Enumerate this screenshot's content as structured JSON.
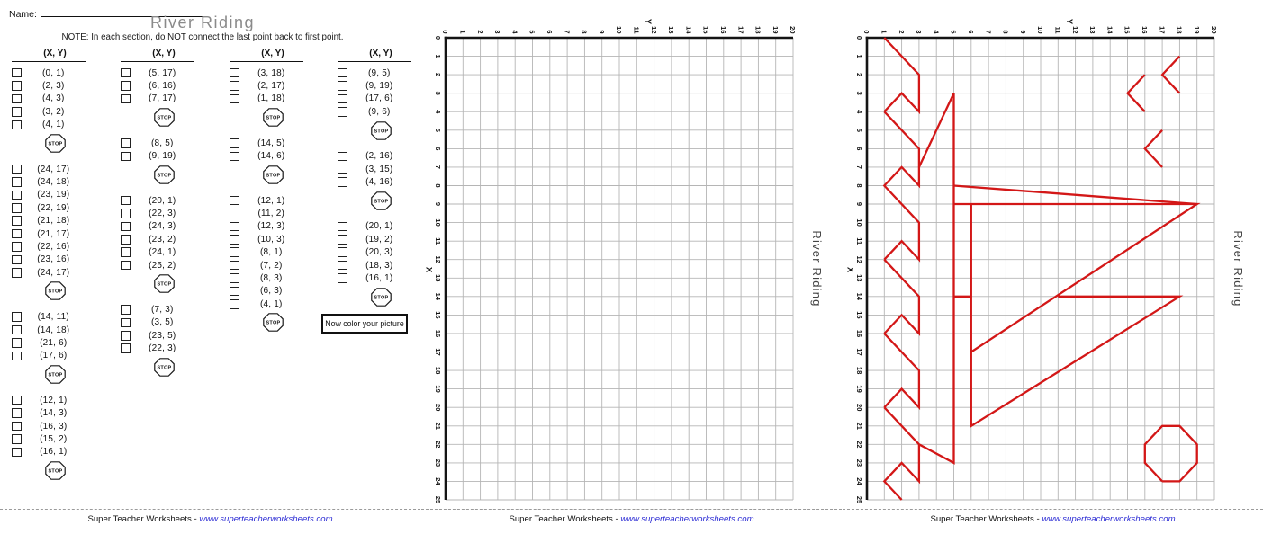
{
  "header": {
    "name_label": "Name:",
    "title": "River Riding",
    "note": "NOTE:  In each section, do NOT connect the last point back to first point."
  },
  "column_header": "(X, Y)",
  "stop_label": "STOP",
  "color_box_label": "Now color your picture",
  "footer": {
    "site": "Super Teacher Worksheets - ",
    "url": "www.superteacherworksheets.com"
  },
  "coordinate_columns": [
    {
      "sections": [
        {
          "points": [
            "(0, 1)",
            "(2, 3)",
            "(4, 3)",
            "(3, 2)",
            "(4, 1)"
          ]
        },
        {
          "points": [
            "(24, 17)",
            "(24, 18)",
            "(23, 19)",
            "(22, 19)",
            "(21, 18)",
            "(21, 17)",
            "(22, 16)",
            "(23, 16)",
            "(24, 17)"
          ]
        },
        {
          "points": [
            "(14, 11)",
            "(14, 18)",
            "(21, 6)",
            "(17, 6)"
          ]
        },
        {
          "points": [
            "(12, 1)",
            "(14, 3)",
            "(16, 3)",
            "(15, 2)",
            "(16, 1)"
          ]
        }
      ]
    },
    {
      "sections": [
        {
          "points": [
            "(5, 17)",
            "(6, 16)",
            "(7, 17)"
          ]
        },
        {
          "points": [
            "(8, 5)",
            "(9, 19)"
          ]
        },
        {
          "points": [
            "(20, 1)",
            "(22, 3)",
            "(24, 3)",
            "(23, 2)",
            "(24, 1)",
            "(25, 2)"
          ]
        },
        {
          "points": [
            "(7, 3)",
            "(3, 5)",
            "(23, 5)",
            "(22, 3)"
          ]
        }
      ]
    },
    {
      "sections": [
        {
          "points": [
            "(3, 18)",
            "(2, 17)",
            "(1, 18)"
          ]
        },
        {
          "points": [
            "(14, 5)",
            "(14, 6)"
          ]
        },
        {
          "points": [
            "(12, 1)",
            "(11, 2)",
            "(12, 3)",
            "(10, 3)",
            "(8, 1)",
            "(7, 2)",
            "(8, 3)",
            "(6, 3)",
            "(4, 1)"
          ]
        }
      ]
    },
    {
      "sections": [
        {
          "points": [
            "(9, 5)",
            "(9, 19)",
            "(17, 6)",
            "(9, 6)"
          ]
        },
        {
          "points": [
            "(2, 16)",
            "(3, 15)",
            "(4, 16)"
          ]
        },
        {
          "points": [
            "(20, 1)",
            "(19, 2)",
            "(20, 3)",
            "(18, 3)",
            "(16, 1)"
          ]
        }
      ]
    }
  ],
  "grid": {
    "x_axis_label": "X",
    "y_axis_label": "Y",
    "x_ticks": [
      "0",
      "1",
      "2",
      "3",
      "4",
      "5",
      "6",
      "7",
      "8",
      "9",
      "10",
      "11",
      "12",
      "13",
      "14",
      "15",
      "16",
      "17",
      "18",
      "19",
      "20",
      "21",
      "22",
      "23",
      "24",
      "25"
    ],
    "y_ticks": [
      "0",
      "1",
      "2",
      "3",
      "4",
      "5",
      "6",
      "7",
      "8",
      "9",
      "10",
      "11",
      "12",
      "13",
      "14",
      "15",
      "16",
      "17",
      "18",
      "19",
      "20"
    ],
    "side_title": "River Riding"
  },
  "colors": {
    "answer_line": "#d31717",
    "grid_line": "#b5b5b5",
    "axis": "#141414",
    "url_blue": "#2b2bd4",
    "title_gray": "#8a8a8a"
  }
}
